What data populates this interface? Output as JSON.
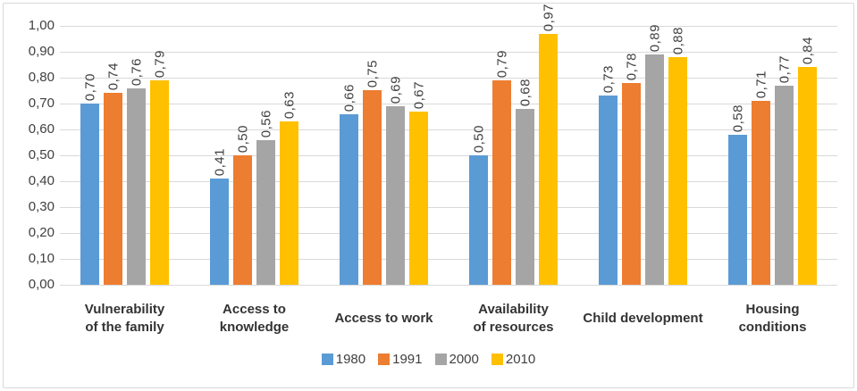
{
  "chart_data": {
    "type": "bar",
    "categories": [
      "Vulnerability\nof the family",
      "Access to\nknowledge",
      "Access to work",
      "Availability\nof resources",
      "Child development",
      "Housing\nconditions"
    ],
    "series": [
      {
        "name": "1980",
        "color": "#5B9BD5",
        "values": [
          0.7,
          0.41,
          0.66,
          0.5,
          0.73,
          0.58
        ]
      },
      {
        "name": "1991",
        "color": "#ED7D31",
        "values": [
          0.74,
          0.5,
          0.75,
          0.79,
          0.78,
          0.71
        ]
      },
      {
        "name": "2000",
        "color": "#A5A5A5",
        "values": [
          0.76,
          0.56,
          0.69,
          0.68,
          0.89,
          0.77
        ]
      },
      {
        "name": "2010",
        "color": "#FFC000",
        "values": [
          0.79,
          0.63,
          0.67,
          0.97,
          0.88,
          0.84
        ]
      }
    ],
    "title": "",
    "xlabel": "",
    "ylabel": "",
    "ylim": [
      0,
      1
    ],
    "ytick_step": 0.1,
    "ytick_labels": [
      "1,00",
      "0,90",
      "0,80",
      "0,70",
      "0,60",
      "0,50",
      "0,40",
      "0,30",
      "0,20",
      "0,10",
      "0,00"
    ],
    "decimal_separator": ",",
    "value_labels": true,
    "value_label_rotation_deg": 90,
    "grid": true,
    "gridline_color": "#D9D9D9",
    "legend_position": "bottom"
  }
}
